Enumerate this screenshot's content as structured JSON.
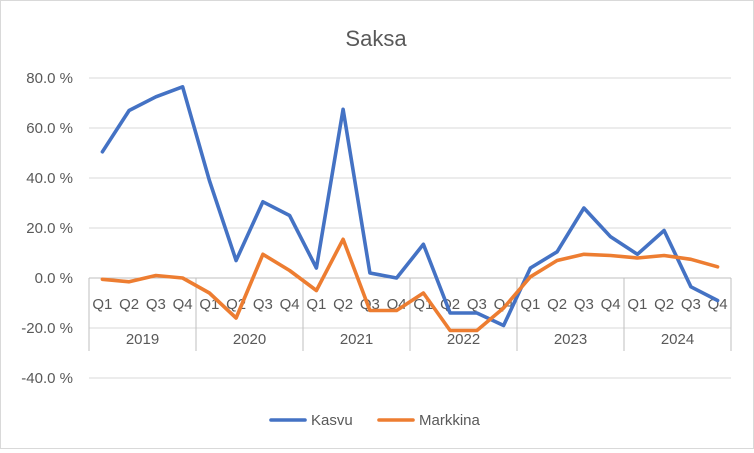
{
  "chart_data": {
    "type": "line",
    "title": "Saksa",
    "xlabel": "",
    "ylabel": "",
    "ylim": [
      -40,
      80
    ],
    "yticks": [
      "80.0 %",
      "60.0 %",
      "40.0 %",
      "20.0 %",
      "0.0 %",
      "-20.0 %",
      "-40.0 %"
    ],
    "ytick_values": [
      80,
      60,
      40,
      20,
      0,
      -20,
      -40
    ],
    "quarters": [
      "Q1",
      "Q2",
      "Q3",
      "Q4",
      "Q1",
      "Q2",
      "Q3",
      "Q4",
      "Q1",
      "Q2",
      "Q3",
      "Q4",
      "Q1",
      "Q2",
      "Q3",
      "Q4",
      "Q1",
      "Q2",
      "Q3",
      "Q4",
      "Q1",
      "Q2",
      "Q3",
      "Q4"
    ],
    "years": [
      "2019",
      "2020",
      "2021",
      "2022",
      "2023",
      "2024"
    ],
    "grid": "horizontal",
    "legend_position": "bottom",
    "series": [
      {
        "name": "Kasvu",
        "color": "#4472c4",
        "values": [
          50.5,
          67,
          72.5,
          76.5,
          39,
          7,
          30.5,
          25,
          4,
          67.5,
          2,
          0,
          13.5,
          -14,
          -14,
          -19,
          4,
          10.5,
          28,
          16.5,
          9.5,
          19,
          -3.5,
          -9
        ]
      },
      {
        "name": "Markkina",
        "color": "#ed7d31",
        "values": [
          -0.5,
          -1.5,
          1,
          0,
          -6,
          -16,
          9.5,
          3,
          -5,
          15.5,
          -13,
          -13,
          -6,
          -21,
          -21,
          -12,
          0.5,
          7,
          9.5,
          9,
          8,
          9,
          7.5,
          4.5
        ]
      }
    ]
  }
}
